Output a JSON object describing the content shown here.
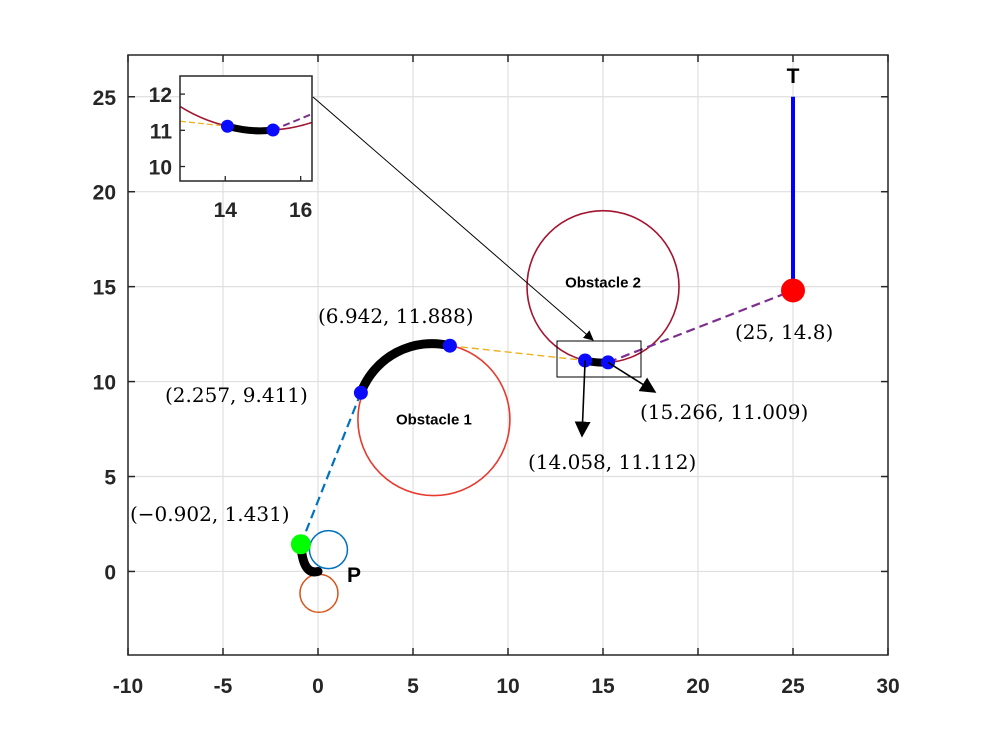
{
  "chart_data": {
    "type": "path-planning-plot",
    "xlim": [
      -10,
      30
    ],
    "ylim": [
      -4.4,
      27.2
    ],
    "xticks": [
      "-10",
      "-5",
      "0",
      "5",
      "10",
      "15",
      "20",
      "25",
      "30"
    ],
    "yticks": [
      "0",
      "5",
      "10",
      "15",
      "20",
      "25"
    ],
    "grid": true,
    "obstacles": [
      {
        "label": "Obstacle 1",
        "center": [
          6.1,
          8.0
        ],
        "radius": 4.0,
        "color": "#e83a2e"
      },
      {
        "label": "Obstacle 2",
        "center": [
          15.0,
          15.0
        ],
        "radius": 4.0,
        "color": "#a2142f"
      }
    ],
    "start_circles": [
      {
        "center": [
          0.55,
          1.15
        ],
        "radius": 1.0,
        "color": "#0072bd"
      },
      {
        "center": [
          0.05,
          -1.15
        ],
        "radius": 1.0,
        "color": "#d95319"
      }
    ],
    "points": {
      "start_label": "P",
      "target_label": "T",
      "start": [
        0,
        0
      ],
      "green_point": [
        -0.902,
        1.431
      ],
      "blue_points": [
        [
          2.257,
          9.411
        ],
        [
          6.942,
          11.888
        ],
        [
          14.058,
          11.112
        ],
        [
          15.266,
          11.009
        ]
      ],
      "red_point": [
        25,
        14.8
      ],
      "target_top": [
        25,
        25
      ]
    },
    "point_labels": [
      {
        "text": "(−0.902, 1.431)",
        "at": [
          -0.902,
          1.431
        ]
      },
      {
        "text": "(2.257, 9.411)",
        "at": [
          2.257,
          9.411
        ]
      },
      {
        "text": "(6.942, 11.888)",
        "at": [
          6.942,
          11.888
        ]
      },
      {
        "text": "(14.058, 11.112)",
        "at": [
          14.058,
          11.112
        ]
      },
      {
        "text": "(15.266, 11.009)",
        "at": [
          15.266,
          11.009
        ]
      },
      {
        "text": "(25, 14.8)",
        "at": [
          25,
          14.8
        ]
      }
    ],
    "inset": {
      "xlim": [
        12.8,
        16.3
      ],
      "ylim": [
        9.6,
        12.5
      ],
      "xticks": [
        "14",
        "16"
      ],
      "yticks": [
        "10",
        "11",
        "12"
      ]
    }
  },
  "colors": {
    "blue_line": "#0000ff",
    "dashed_blue": "#0072bd",
    "dashed_yellow": "#edb120",
    "dashed_purple": "#7e2f8e",
    "green_point": "#00ff00",
    "red_point": "#ff0000"
  }
}
